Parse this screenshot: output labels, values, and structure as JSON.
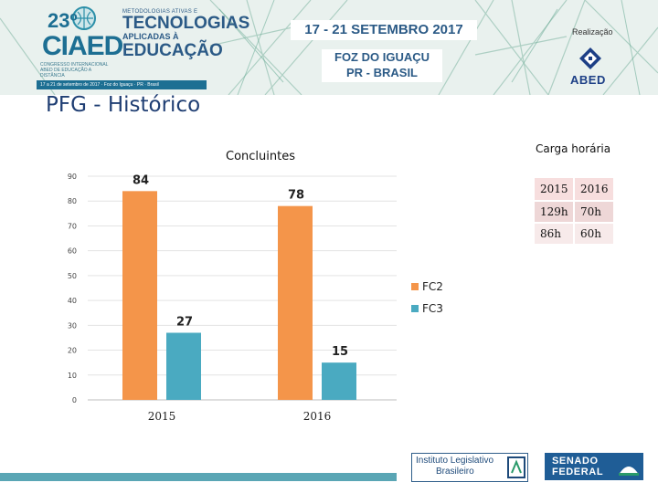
{
  "header": {
    "logo_number": "23º",
    "logo_acronym": "CIAED",
    "logo_subtitle": "CONGRESSO INTERNACIONAL ABED DE EDUCAÇÃO A DISTÂNCIA",
    "logo_strip_text": "17 a 21 de setembro de 2017 · Foz do Iguaçu · PR · Brasil",
    "title_line1": "METODOLOGIAS ATIVAS E",
    "title_line2": "TECNOLOGIAS",
    "title_line3": "APLICADAS À",
    "title_line4": "EDUCAÇÃO",
    "dates": "17 - 21 SETEMBRO 2017",
    "city_line1": "FOZ DO IGUAÇU",
    "city_line2": "PR - BRASIL",
    "realizacao_label": "Realização",
    "abed_label": "ABED"
  },
  "page_title": "PFG - Histórico",
  "chart_data": {
    "type": "bar",
    "title": "Concluintes",
    "categories": [
      "2015",
      "2016"
    ],
    "series": [
      {
        "name": "FC2",
        "values": [
          84,
          78
        ],
        "color": "#f4954a"
      },
      {
        "name": "FC3",
        "values": [
          27,
          15
        ],
        "color": "#4aaac1"
      }
    ],
    "ylim": [
      0,
      90
    ],
    "yticks": [
      0,
      10,
      20,
      30,
      40,
      50,
      60,
      70,
      80,
      90
    ],
    "data_labels": true,
    "legend_position": "right",
    "grid": true
  },
  "carga_horaria": {
    "title": "Carga horária",
    "headers": [
      "2015",
      "2016"
    ],
    "rows": [
      [
        "129h",
        "70h"
      ],
      [
        "86h",
        "60h"
      ]
    ]
  },
  "footer": {
    "ilb_line1": "Instituto Legislativo",
    "ilb_line2": "Brasileiro",
    "senado_line1": "SENADO",
    "senado_line2": "FEDERAL"
  }
}
